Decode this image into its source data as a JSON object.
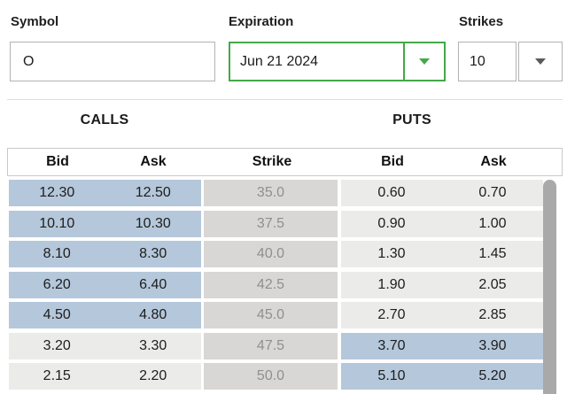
{
  "controls": {
    "symbol": {
      "label": "Symbol",
      "value": "O"
    },
    "expiration": {
      "label": "Expiration",
      "value": "Jun 21 2024"
    },
    "strikes": {
      "label": "Strikes",
      "value": "10"
    }
  },
  "table": {
    "calls_title": "CALLS",
    "puts_title": "PUTS",
    "columns": [
      "Bid",
      "Ask",
      "Strike",
      "Bid",
      "Ask"
    ],
    "rows": [
      {
        "call_bid": "12.30",
        "call_ask": "12.50",
        "strike": "35.0",
        "put_bid": "0.60",
        "put_ask": "0.70",
        "call_itm": true,
        "put_itm": false
      },
      {
        "call_bid": "10.10",
        "call_ask": "10.30",
        "strike": "37.5",
        "put_bid": "0.90",
        "put_ask": "1.00",
        "call_itm": true,
        "put_itm": false
      },
      {
        "call_bid": "8.10",
        "call_ask": "8.30",
        "strike": "40.0",
        "put_bid": "1.30",
        "put_ask": "1.45",
        "call_itm": true,
        "put_itm": false
      },
      {
        "call_bid": "6.20",
        "call_ask": "6.40",
        "strike": "42.5",
        "put_bid": "1.90",
        "put_ask": "2.05",
        "call_itm": true,
        "put_itm": false
      },
      {
        "call_bid": "4.50",
        "call_ask": "4.80",
        "strike": "45.0",
        "put_bid": "2.70",
        "put_ask": "2.85",
        "call_itm": true,
        "put_itm": false
      },
      {
        "call_bid": "3.20",
        "call_ask": "3.30",
        "strike": "47.5",
        "put_bid": "3.70",
        "put_ask": "3.90",
        "call_itm": false,
        "put_itm": true
      },
      {
        "call_bid": "2.15",
        "call_ask": "2.20",
        "strike": "50.0",
        "put_bid": "5.10",
        "put_ask": "5.20",
        "call_itm": false,
        "put_itm": true
      }
    ]
  },
  "colors": {
    "in_the_money": "#b5c7da",
    "out_of_money": "#ebebe9",
    "strike_bg": "#d8d7d5",
    "strike_fg": "#8f8f8f",
    "accent_green": "#44a948",
    "scrollbar": "#a9a9a9"
  }
}
